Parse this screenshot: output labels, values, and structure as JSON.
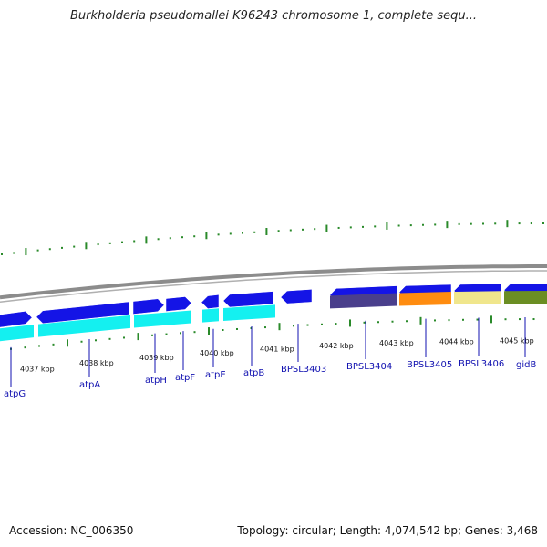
{
  "title": "Burkholderia pseudomallei K96243 chromosome 1, complete sequ...",
  "footer": {
    "accession": "Accession: NC_006350",
    "topology": "Topology: circular; Length: 4,074,542 bp; Genes: 3,468"
  },
  "colors": {
    "backbone": "#8c8c8c",
    "gene_blue": "#1414e6",
    "cds_cyan": "#14f0f0",
    "tick_green": "#2a8a2a",
    "label_blue": "#1010b0",
    "BPSL3404_bar": "#4a3f8c",
    "BPSL3405_bar": "#ff8c10",
    "BPSL3406_bar": "#f0e68c",
    "gidB_bar": "#6b8e23"
  },
  "kbp_labels": [
    "4037 kbp",
    "4038 kbp",
    "4039 kbp",
    "4040 kbp",
    "4041 kbp",
    "4042 kbp",
    "4043 kbp",
    "4044 kbp",
    "4045 kbp"
  ],
  "genes": [
    "atpG",
    "atpA",
    "atpH",
    "atpF",
    "atpE",
    "atpB",
    "BPSL3403",
    "BPSL3404",
    "BPSL3405",
    "BPSL3406",
    "gidB"
  ]
}
